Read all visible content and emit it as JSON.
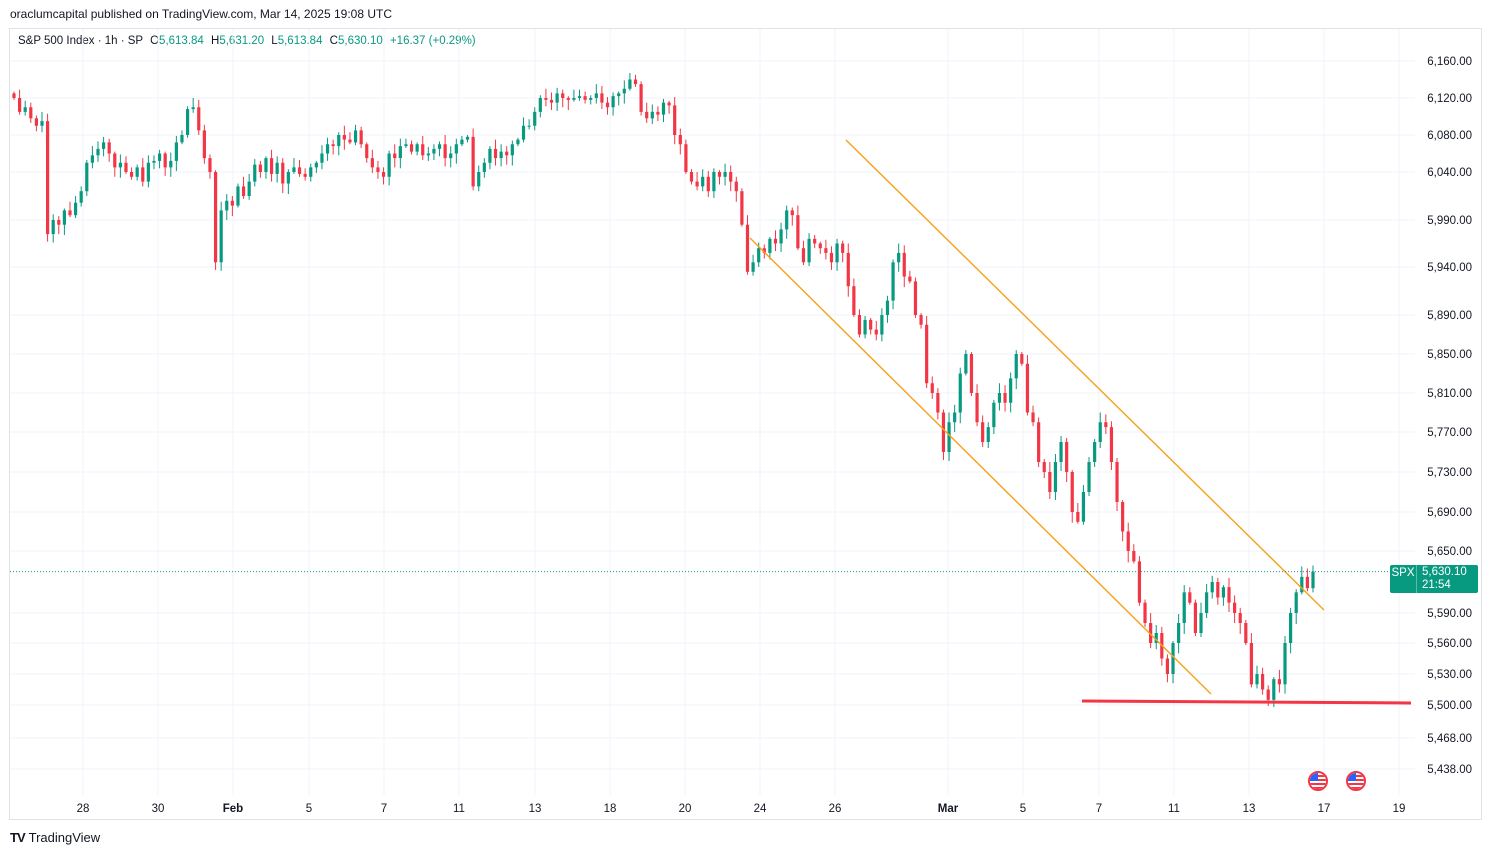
{
  "header": {
    "published": "oraclumcapital published on TradingView.com, Mar 14, 2025 19:08 UTC"
  },
  "legend": {
    "title": "S&P 500 Index · 1h · SP",
    "open_label": "O",
    "open": "5,613.84",
    "high_label": "H",
    "high": "5,631.20",
    "low_label": "L",
    "low": "5,613.84",
    "close_label": "C",
    "close": "5,630.10",
    "change": "+16.37 (+0.29%)"
  },
  "price_badge": {
    "symbol": "SPX",
    "price": "5,630.10",
    "timer": "21:54"
  },
  "footer": {
    "brand": "TradingView",
    "logo": "TV"
  },
  "colors": {
    "up": "#089981",
    "down": "#f23645",
    "channel": "#f7a11a",
    "support": "#f23645",
    "grid": "#f0f3fa"
  },
  "icons": [
    "us-flag-event-icon",
    "us-flag-event-icon"
  ],
  "chart_data": {
    "type": "candlestick",
    "series_name": "S&P 500 Index",
    "interval": "1h",
    "y_ticks": [
      6160,
      6120,
      6080,
      6040,
      5990,
      5940,
      5890,
      5850,
      5810,
      5770,
      5730,
      5690,
      5650,
      5590,
      5560,
      5530,
      5500,
      5468,
      5438
    ],
    "y_tick_labels": [
      "6,160.00",
      "6,120.00",
      "6,080.00",
      "6,040.00",
      "5,990.00",
      "5,940.00",
      "5,890.00",
      "5,850.00",
      "5,810.00",
      "5,770.00",
      "5,730.00",
      "5,690.00",
      "5,650.00",
      "5,590.00",
      "5,560.00",
      "5,530.00",
      "5,500.00",
      "5,468.00",
      "5,438.00"
    ],
    "x_labels": [
      {
        "label": "28",
        "bold": false
      },
      {
        "label": "30",
        "bold": false
      },
      {
        "label": "Feb",
        "bold": true
      },
      {
        "label": "5",
        "bold": false
      },
      {
        "label": "7",
        "bold": false
      },
      {
        "label": "11",
        "bold": false
      },
      {
        "label": "13",
        "bold": false
      },
      {
        "label": "18",
        "bold": false
      },
      {
        "label": "20",
        "bold": false
      },
      {
        "label": "24",
        "bold": false
      },
      {
        "label": "26",
        "bold": false
      },
      {
        "label": "Mar",
        "bold": true
      },
      {
        "label": "5",
        "bold": false
      },
      {
        "label": "7",
        "bold": false
      },
      {
        "label": "11",
        "bold": false
      },
      {
        "label": "13",
        "bold": false
      },
      {
        "label": "17",
        "bold": false
      },
      {
        "label": "19",
        "bold": false
      }
    ],
    "last_price": 5630.1,
    "closes": [
      6120,
      6105,
      6110,
      6098,
      6090,
      6095,
      5975,
      5990,
      5985,
      6000,
      5995,
      6008,
      6020,
      6050,
      6058,
      6065,
      6072,
      6060,
      6045,
      6050,
      6040,
      6035,
      6045,
      6030,
      6050,
      6052,
      6060,
      6045,
      6052,
      6072,
      6080,
      6108,
      6110,
      6085,
      6055,
      6040,
      5945,
      6000,
      6010,
      6005,
      6025,
      6015,
      6030,
      6048,
      6040,
      6055,
      6038,
      6050,
      6028,
      6040,
      6045,
      6038,
      6035,
      6045,
      6050,
      6060,
      6070,
      6068,
      6080,
      6075,
      6072,
      6085,
      6070,
      6055,
      6045,
      6040,
      6035,
      6060,
      6055,
      6068,
      6070,
      6062,
      6070,
      6058,
      6060,
      6065,
      6070,
      6055,
      6060,
      6070,
      6075,
      6078,
      6025,
      6040,
      6050,
      6065,
      6055,
      6062,
      6058,
      6070,
      6075,
      6090,
      6090,
      6105,
      6120,
      6118,
      6115,
      6125,
      6120,
      6118,
      6120,
      6122,
      6118,
      6120,
      6125,
      6115,
      6110,
      6122,
      6125,
      6130,
      6140,
      6135,
      6105,
      6098,
      6105,
      6102,
      6115,
      6112,
      6080,
      6070,
      6040,
      6030,
      6025,
      6035,
      6020,
      6040,
      6035,
      6040,
      6030,
      6020,
      5985,
      5935,
      5945,
      5960,
      5955,
      5970,
      5965,
      5980,
      6000,
      5995,
      5960,
      5945,
      5970,
      5965,
      5960,
      5955,
      5945,
      5965,
      5955,
      5920,
      5890,
      5870,
      5885,
      5875,
      5870,
      5890,
      5905,
      5945,
      5955,
      5930,
      5925,
      5890,
      5880,
      5820,
      5810,
      5790,
      5750,
      5780,
      5790,
      5830,
      5850,
      5810,
      5780,
      5760,
      5775,
      5800,
      5810,
      5800,
      5825,
      5850,
      5840,
      5790,
      5780,
      5740,
      5730,
      5710,
      5740,
      5760,
      5730,
      5690,
      5680,
      5710,
      5740,
      5760,
      5780,
      5775,
      5740,
      5700,
      5670,
      5650,
      5640,
      5600,
      5580,
      5560,
      5570,
      5545,
      5530,
      5560,
      5580,
      5610,
      5600,
      5570,
      5590,
      5610,
      5620,
      5605,
      5615,
      5600,
      5590,
      5580,
      5560,
      5520,
      5530,
      5515,
      5505,
      5525,
      5520,
      5560,
      5590,
      5610,
      5625,
      5614,
      5630
    ]
  }
}
